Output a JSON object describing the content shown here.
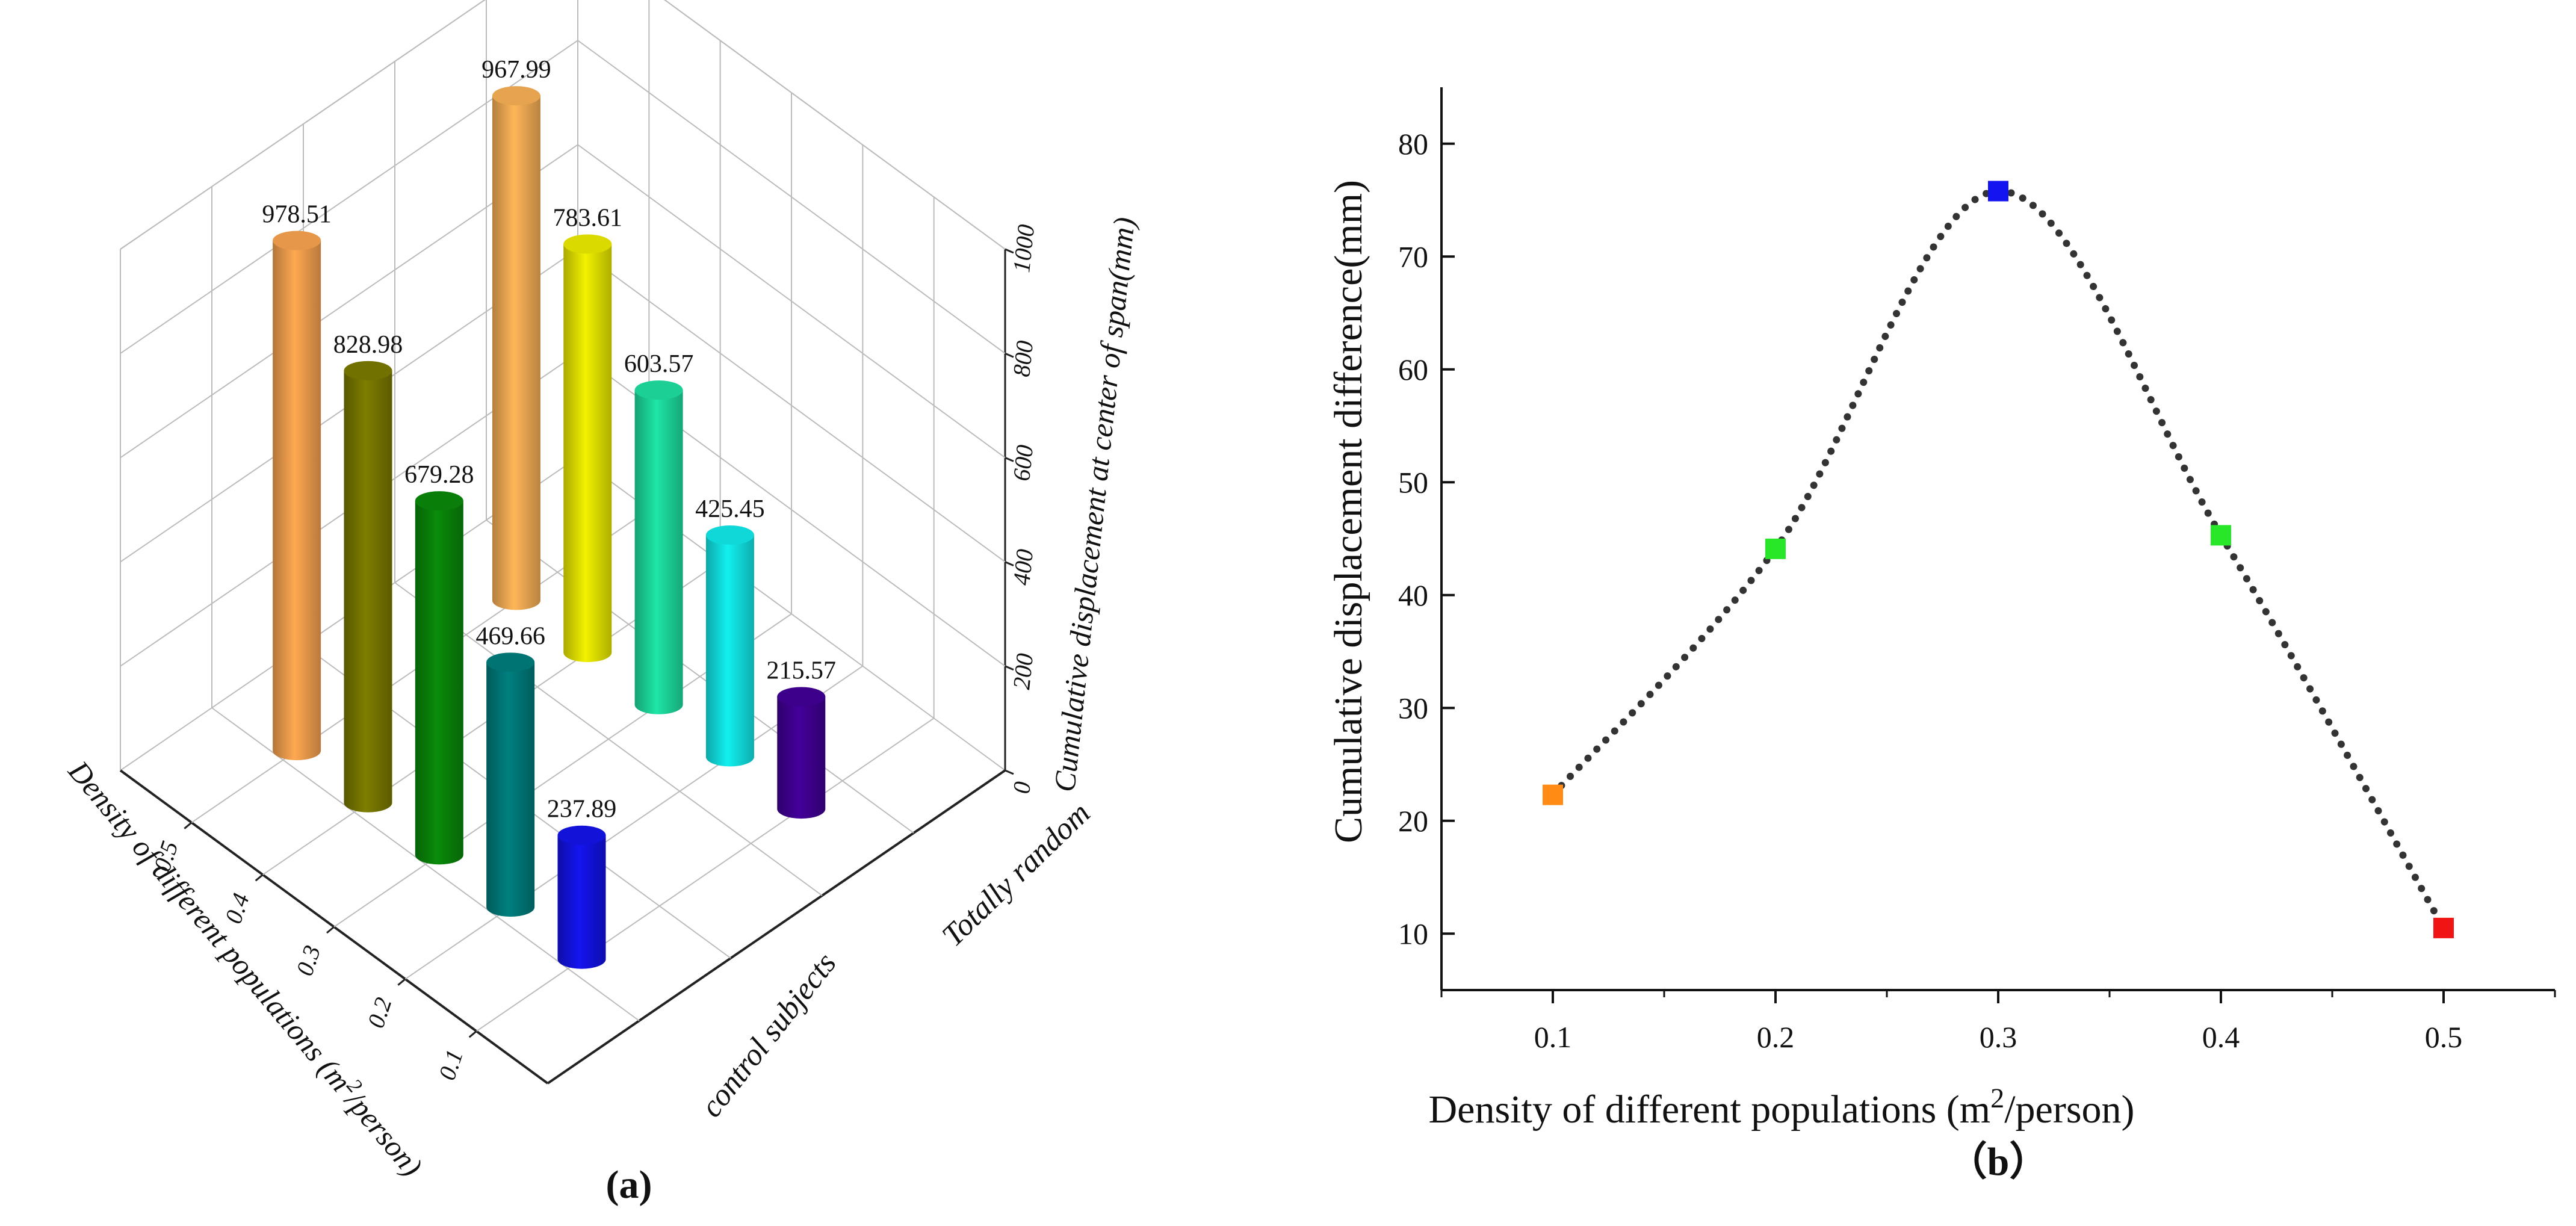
{
  "chart_data": [
    {
      "type": "bar3d",
      "panel_label": "(a)",
      "zlabel": "Cumulative displacement at center of span(mm)",
      "ylabel": "Density of different populations (m²/person)",
      "xlabel_categories": [
        "control subjects",
        "Totally random"
      ],
      "density_ticks": [
        "0.5",
        "0.4",
        "0.3",
        "0.2",
        "0.1"
      ],
      "z_ticks": [
        "0",
        "200",
        "400",
        "600",
        "800",
        "1000"
      ],
      "zlim": [
        0,
        1000
      ],
      "series": [
        {
          "name": "control subjects",
          "density": [
            0.5,
            0.4,
            0.3,
            0.2,
            0.1
          ],
          "values": [
            978.51,
            828.98,
            679.28,
            469.66,
            237.89
          ],
          "labels": [
            "978.51",
            "828.98",
            "679.28",
            "469.66",
            "237.89"
          ],
          "colors": [
            "#FFA852",
            "#7E7E00",
            "#0A8C0A",
            "#008080",
            "#1414F0"
          ]
        },
        {
          "name": "Totally random",
          "density": [
            0.5,
            0.4,
            0.3,
            0.2,
            0.1
          ],
          "values": [
            967.99,
            783.61,
            603.57,
            425.45,
            215.57
          ],
          "labels": [
            "967.99",
            "783.61",
            "603.57",
            "425.45",
            "215.57"
          ],
          "colors": [
            "#FFB659",
            "#F2F200",
            "#1EE6A6",
            "#12F0F0",
            "#44009A"
          ]
        }
      ]
    },
    {
      "type": "scatter-line",
      "panel_label": "（b）",
      "xlabel": "Density of different populations (m²/person)",
      "ylabel": "Cumulative displacement  difference(mm)",
      "x": [
        0.1,
        0.2,
        0.3,
        0.4,
        0.5
      ],
      "y": [
        22.3,
        44.1,
        75.8,
        45.3,
        10.5
      ],
      "point_colors": [
        "#FF8A14",
        "#28E628",
        "#1414F0",
        "#28E628",
        "#F01414"
      ],
      "xlim": [
        0.05,
        0.55
      ],
      "ylim": [
        5,
        85
      ],
      "x_ticks": [
        "0.1",
        "0.2",
        "0.3",
        "0.4",
        "0.5"
      ],
      "y_ticks": [
        "10",
        "20",
        "30",
        "40",
        "50",
        "60",
        "70",
        "80"
      ],
      "line_style": "dotted"
    }
  ]
}
